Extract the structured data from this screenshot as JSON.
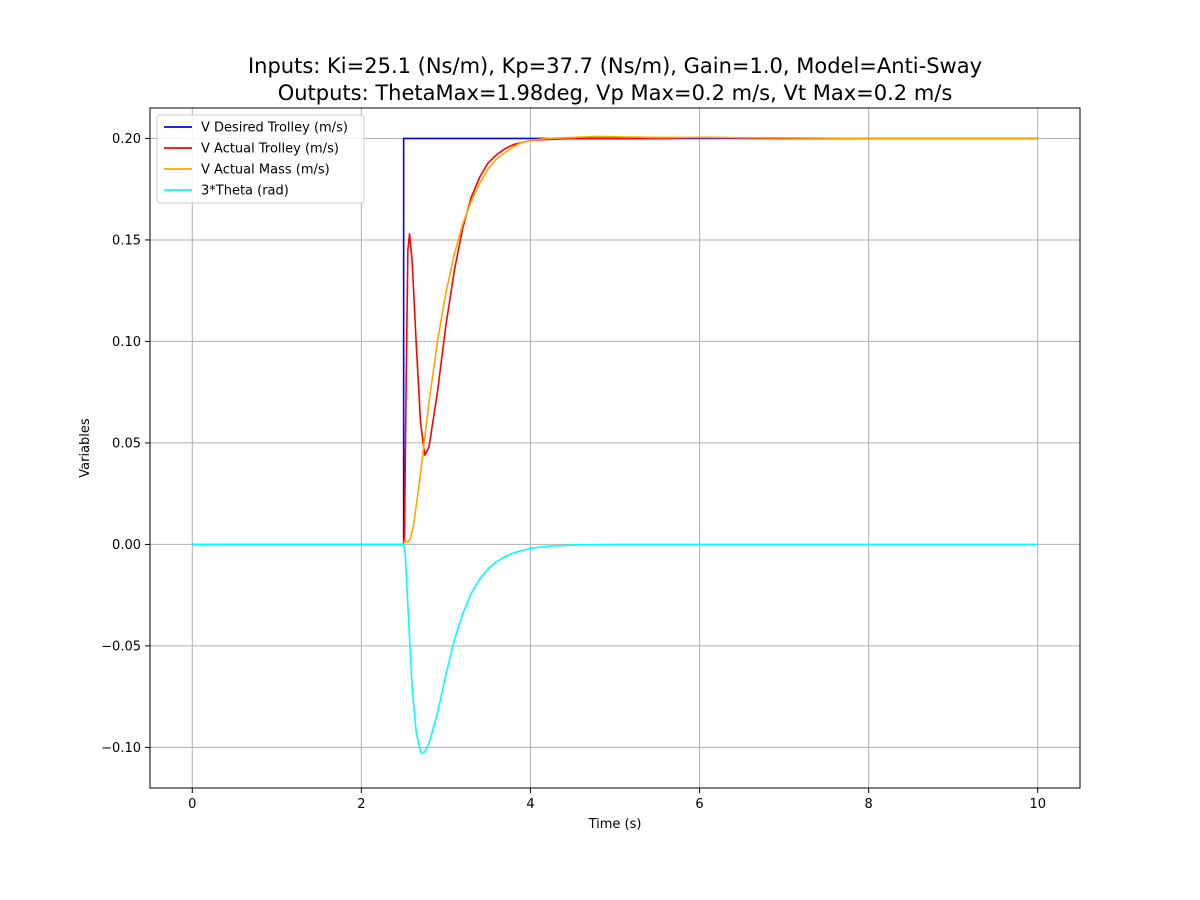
{
  "chart_data": {
    "type": "line",
    "title_line1": "Inputs: Ki=25.1 (Ns/m), Kp=37.7 (Ns/m), Gain=1.0, Model=Anti-Sway",
    "title_line2": "Outputs: ThetaMax=1.98deg, Vp Max=0.2 m/s, Vt Max=0.2 m/s",
    "xlabel": "Time (s)",
    "ylabel": "Variables",
    "xlim": [
      -0.5,
      10.5
    ],
    "ylim": [
      -0.12,
      0.215
    ],
    "x_ticks": [
      0,
      2,
      4,
      6,
      8,
      10
    ],
    "x_tick_labels": [
      "0",
      "2",
      "4",
      "6",
      "8",
      "10"
    ],
    "y_ticks": [
      -0.1,
      -0.05,
      0.0,
      0.05,
      0.1,
      0.15,
      0.2
    ],
    "y_tick_labels": [
      "−0.10",
      "−0.05",
      "0.00",
      "0.05",
      "0.10",
      "0.15",
      "0.20"
    ],
    "grid": true,
    "legend_position": "top-left",
    "series": [
      {
        "name": "V Desired Trolley (m/s)",
        "color": "#0000ff",
        "x": [
          0,
          2.5,
          2.5,
          10
        ],
        "y": [
          0,
          0,
          0.2,
          0.2
        ]
      },
      {
        "name": "V Actual Trolley (m/s)",
        "color": "#ff0000",
        "x": [
          0,
          2.5,
          2.51,
          2.53,
          2.55,
          2.57,
          2.6,
          2.65,
          2.7,
          2.75,
          2.8,
          2.9,
          3.0,
          3.1,
          3.2,
          3.3,
          3.4,
          3.5,
          3.6,
          3.7,
          3.8,
          4.0,
          4.2,
          4.5,
          4.8,
          5.0,
          5.5,
          6.0,
          7.0,
          8.0,
          10.0
        ],
        "y": [
          0,
          0,
          0.005,
          0.08,
          0.145,
          0.153,
          0.14,
          0.098,
          0.06,
          0.044,
          0.048,
          0.075,
          0.108,
          0.135,
          0.156,
          0.171,
          0.181,
          0.188,
          0.192,
          0.195,
          0.197,
          0.199,
          0.1995,
          0.2,
          0.2,
          0.2,
          0.2,
          0.2005,
          0.2,
          0.2,
          0.2
        ]
      },
      {
        "name": "V Actual Mass (m/s)",
        "color": "#ffa500",
        "x": [
          0,
          2.5,
          2.52,
          2.55,
          2.58,
          2.62,
          2.7,
          2.8,
          2.9,
          3.0,
          3.1,
          3.2,
          3.3,
          3.4,
          3.5,
          3.6,
          3.7,
          3.8,
          3.9,
          4.0,
          4.2,
          4.5,
          4.8,
          5.0,
          5.5,
          6.0,
          7.0,
          8.0,
          10.0
        ],
        "y": [
          0,
          0,
          0.002,
          0.001,
          0.003,
          0.01,
          0.035,
          0.07,
          0.1,
          0.124,
          0.143,
          0.158,
          0.169,
          0.178,
          0.185,
          0.19,
          0.193,
          0.196,
          0.198,
          0.199,
          0.2,
          0.2005,
          0.201,
          0.2008,
          0.2005,
          0.2005,
          0.2003,
          0.2,
          0.2
        ]
      },
      {
        "name": "3*Theta (rad)",
        "color": "#00ffff",
        "x": [
          0,
          2.5,
          2.52,
          2.55,
          2.6,
          2.65,
          2.7,
          2.72,
          2.75,
          2.8,
          2.9,
          3.0,
          3.1,
          3.2,
          3.3,
          3.4,
          3.5,
          3.6,
          3.7,
          3.8,
          3.9,
          4.0,
          4.2,
          4.5,
          4.8,
          5.0,
          5.5,
          6.0,
          7.0,
          8.0,
          10.0
        ],
        "y": [
          0,
          0,
          -0.005,
          -0.03,
          -0.07,
          -0.093,
          -0.102,
          -0.103,
          -0.102,
          -0.098,
          -0.083,
          -0.064,
          -0.047,
          -0.034,
          -0.024,
          -0.017,
          -0.012,
          -0.0085,
          -0.006,
          -0.0042,
          -0.003,
          -0.002,
          -0.0009,
          -0.0003,
          -0.0001,
          0,
          0,
          0,
          0,
          0,
          0
        ]
      }
    ]
  }
}
